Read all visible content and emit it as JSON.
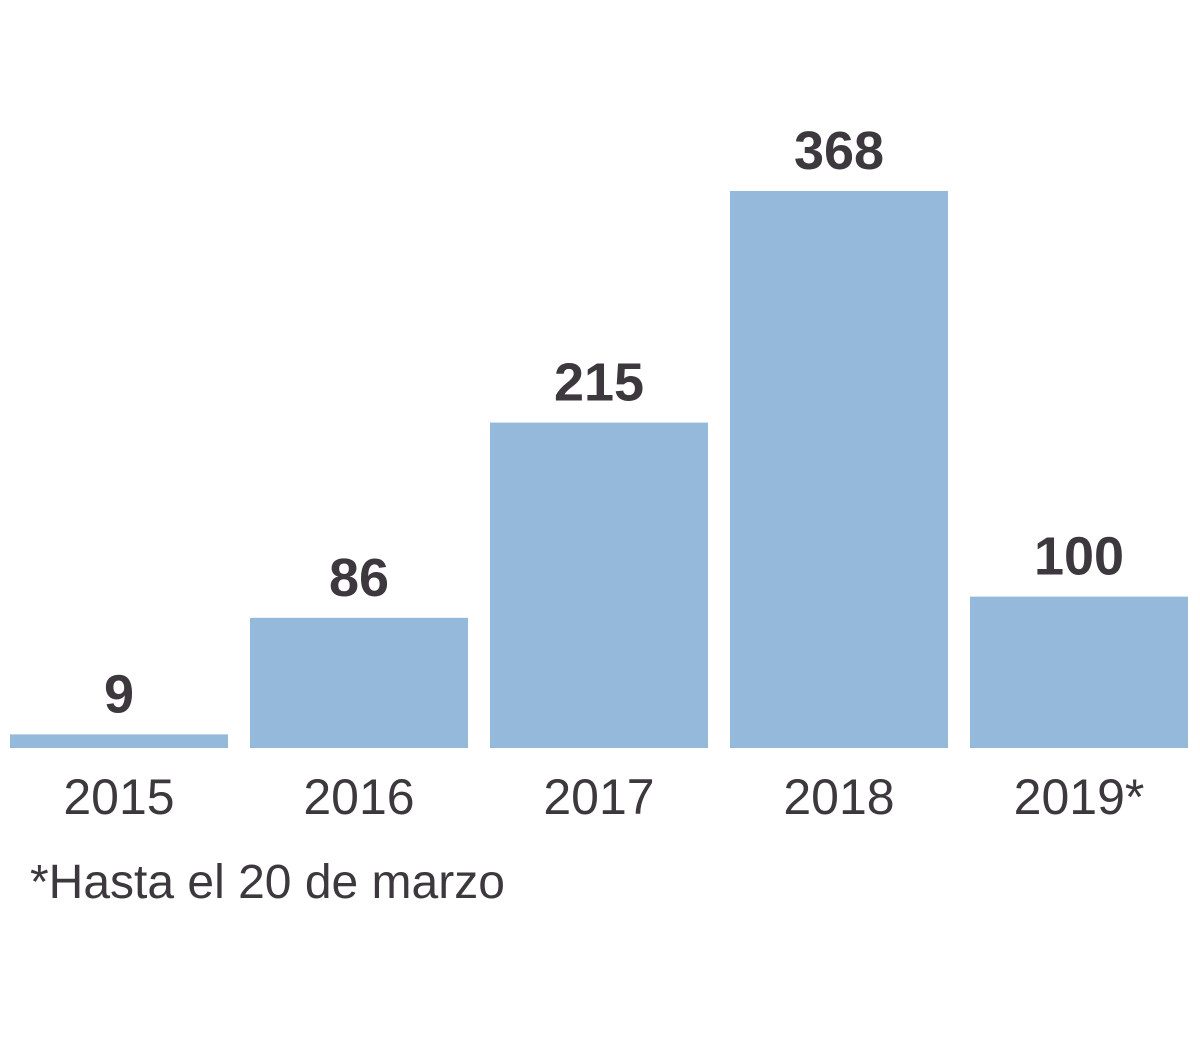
{
  "chart_data": {
    "type": "bar",
    "categories": [
      "2015",
      "2016",
      "2017",
      "2018",
      "2019*"
    ],
    "values": [
      9,
      86,
      215,
      368,
      100
    ],
    "data_labels": [
      "9",
      "86",
      "215",
      "368",
      "100"
    ],
    "title": "",
    "xlabel": "",
    "ylabel": "",
    "ylim": [
      0,
      368
    ],
    "grid": false,
    "legend": "none",
    "note": "*Hasta el 20 de marzo"
  },
  "colors": {
    "bar": "#94b9da",
    "text": "#3d373e",
    "background": "#ffffff"
  }
}
